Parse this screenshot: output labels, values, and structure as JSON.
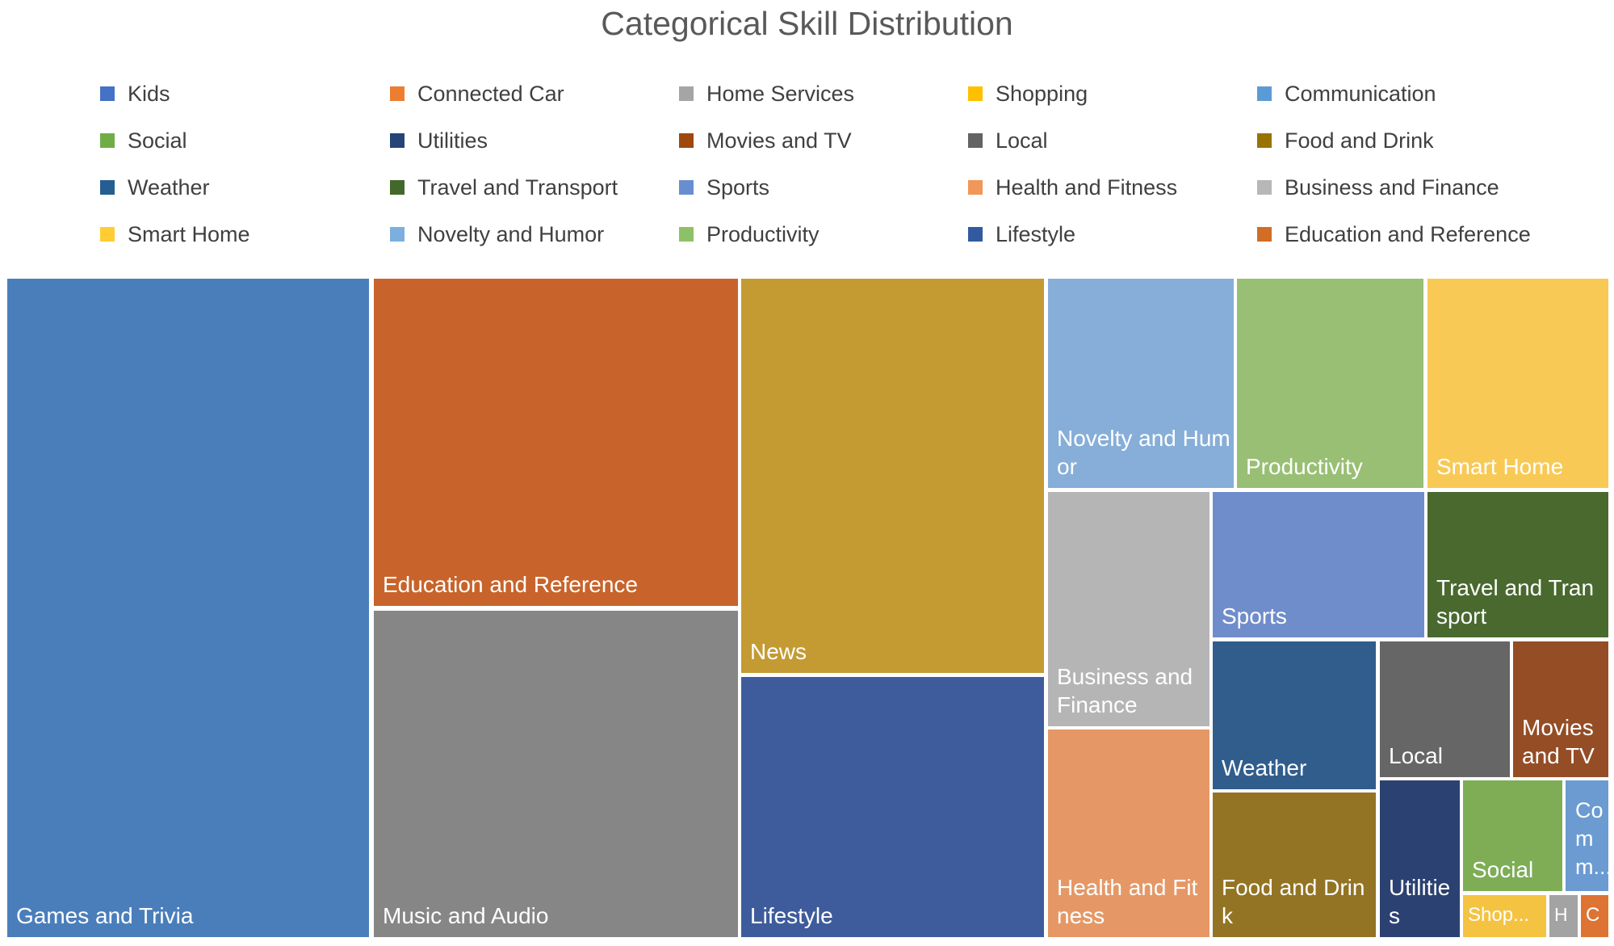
{
  "chart_data": {
    "type": "treemap",
    "title": "Categorical Skill Distribution",
    "legend_position": "top",
    "legend": [
      {
        "name": "Kids",
        "color": "#4472C4"
      },
      {
        "name": "Connected Car",
        "color": "#ED7D31"
      },
      {
        "name": "Home Services",
        "color": "#A5A5A5"
      },
      {
        "name": "Shopping",
        "color": "#FFC000"
      },
      {
        "name": "Communication",
        "color": "#5B9BD5"
      },
      {
        "name": "Social",
        "color": "#70AD47"
      },
      {
        "name": "Utilities",
        "color": "#264478"
      },
      {
        "name": "Movies and TV",
        "color": "#9E480E"
      },
      {
        "name": "Local",
        "color": "#636363"
      },
      {
        "name": "Food and Drink",
        "color": "#997300"
      },
      {
        "name": "Weather",
        "color": "#255E91"
      },
      {
        "name": "Travel and Transport",
        "color": "#43682B"
      },
      {
        "name": "Sports",
        "color": "#698ED0"
      },
      {
        "name": "Health and Fitness",
        "color": "#F1975A"
      },
      {
        "name": "Business and Finance",
        "color": "#B7B7B7"
      },
      {
        "name": "Smart Home",
        "color": "#FFCD33"
      },
      {
        "name": "Novelty and Humor",
        "color": "#7CAFDD"
      },
      {
        "name": "Productivity",
        "color": "#8CC168"
      },
      {
        "name": "Lifestyle",
        "color": "#335AA1"
      },
      {
        "name": "Education and Reference",
        "color": "#D26D26"
      }
    ],
    "tiles": [
      {
        "label": "Games and Trivia",
        "value": 22.6,
        "color": "#4A7EBB"
      },
      {
        "label": "Education and Reference",
        "value": 11.4,
        "color": "#C8642B"
      },
      {
        "label": "Music and Audio",
        "value": 11.3,
        "color": "#868686"
      },
      {
        "label": "News",
        "value": 11.4,
        "color": "#C49A33"
      },
      {
        "label": "Lifestyle",
        "value": 7.6,
        "color": "#3E5C9C"
      },
      {
        "label": "Novelty and Humor",
        "value": 3.7,
        "color": "#86AED8"
      },
      {
        "label": "Productivity",
        "value": 3.7,
        "color": "#98BF74"
      },
      {
        "label": "Smart Home",
        "value": 3.7,
        "color": "#F8C955"
      },
      {
        "label": "Business and Finance",
        "value": 3.6,
        "color": "#B5B5B5"
      },
      {
        "label": "Health and Fitness",
        "value": 3.2,
        "color": "#E59866"
      },
      {
        "label": "Sports",
        "value": 2.4,
        "color": "#6F8DCB"
      },
      {
        "label": "Travel and Transport",
        "value": 2.4,
        "color": "#49692F"
      },
      {
        "label": "Weather",
        "value": 1.9,
        "color": "#315D8D"
      },
      {
        "label": "Food and Drink",
        "value": 1.8,
        "color": "#937424"
      },
      {
        "label": "Local",
        "value": 1.4,
        "color": "#666666"
      },
      {
        "label": "Movies and TV",
        "value": 1.3,
        "color": "#944D25"
      },
      {
        "label": "Utilities",
        "value": 1.0,
        "color": "#2B4171"
      },
      {
        "label": "Social",
        "value": 0.7,
        "color": "#7EAD56"
      },
      {
        "label": "Comm...",
        "full_name": "Communication",
        "value": 0.4,
        "color": "#6B9BD1"
      },
      {
        "label": "Shop...",
        "full_name": "Shopping",
        "value": 0.3,
        "color": "#F5C342"
      },
      {
        "label": "H",
        "full_name": "Home Services",
        "value": 0.1,
        "color": "#A3A3A3"
      },
      {
        "label": "C",
        "full_name": "Connected Car",
        "value": 0.1,
        "color": "#DD7433"
      }
    ]
  }
}
